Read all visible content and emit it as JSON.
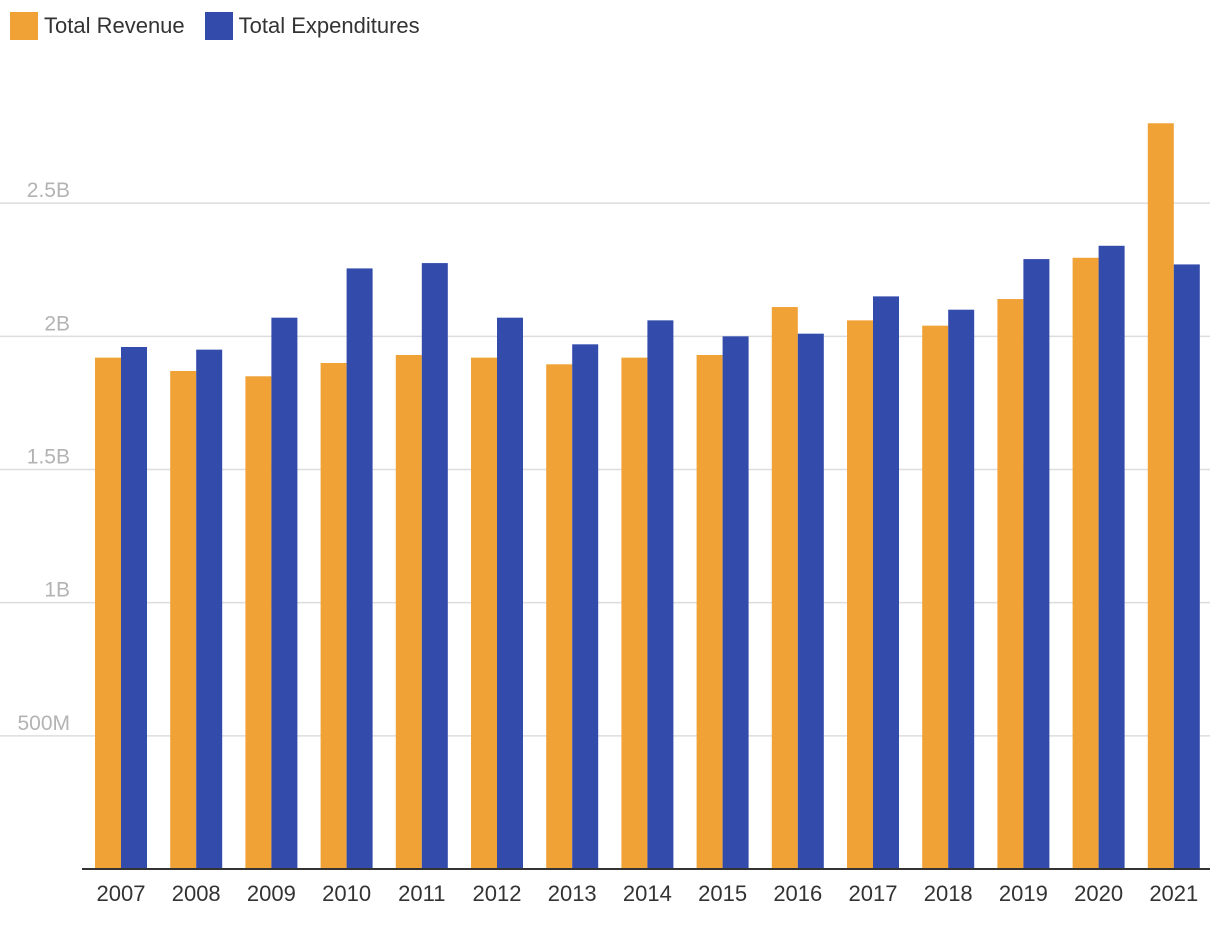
{
  "chart_data": {
    "type": "bar",
    "categories": [
      "2007",
      "2008",
      "2009",
      "2010",
      "2011",
      "2012",
      "2013",
      "2014",
      "2015",
      "2016",
      "2017",
      "2018",
      "2019",
      "2020",
      "2021"
    ],
    "series": [
      {
        "name": "Total Revenue",
        "color": "#f0a236",
        "values": [
          1.92,
          1.87,
          1.85,
          1.9,
          1.93,
          1.92,
          1.895,
          1.92,
          1.93,
          2.11,
          2.06,
          2.04,
          2.14,
          2.295,
          2.8
        ]
      },
      {
        "name": "Total Expenditures",
        "color": "#334bab",
        "values": [
          1.96,
          1.95,
          2.07,
          2.255,
          2.275,
          2.07,
          1.97,
          2.06,
          2.0,
          2.01,
          2.15,
          2.1,
          2.29,
          2.34,
          2.27
        ]
      }
    ],
    "units": "billions",
    "ylim": [
      0,
      3.0
    ],
    "yticks": [
      {
        "value": 0.5,
        "label": "500M"
      },
      {
        "value": 1.0,
        "label": "1B"
      },
      {
        "value": 1.5,
        "label": "1.5B"
      },
      {
        "value": 2.0,
        "label": "2B"
      },
      {
        "value": 2.5,
        "label": "2.5B"
      }
    ],
    "title": "",
    "xlabel": "",
    "ylabel": "",
    "grid": true,
    "legend_position": "top-left"
  }
}
